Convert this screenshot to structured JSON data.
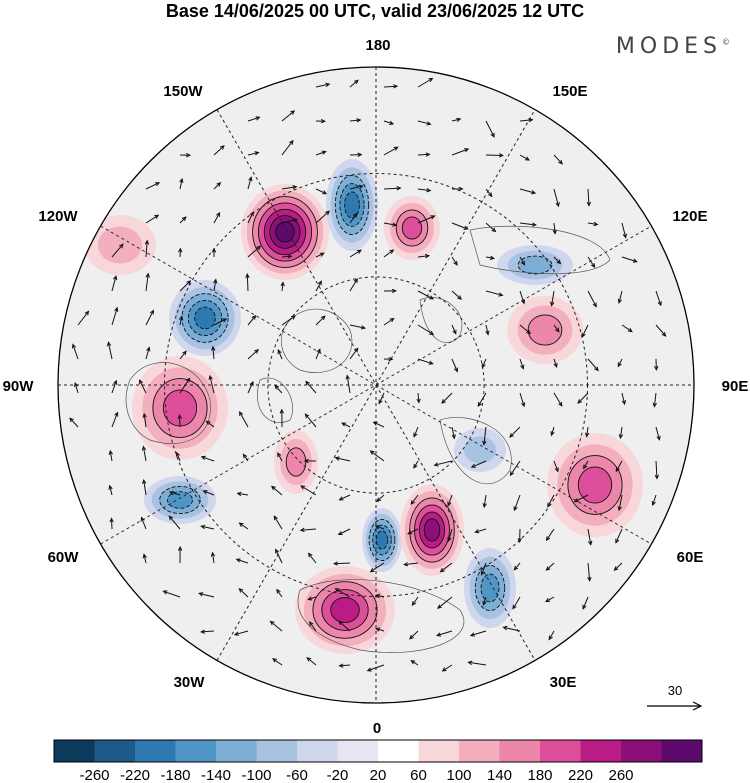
{
  "title": "Base 14/06/2025 00 UTC, valid 23/06/2025 12 UTC",
  "brand": "MODES",
  "brand_mark": "©",
  "longitude_labels": {
    "n180": "180",
    "e150": "150E",
    "e120": "120E",
    "e90": "90E",
    "e60": "60E",
    "e30": "30E",
    "s0": "0",
    "w30": "30W",
    "w60": "60W",
    "w90": "90W",
    "w120": "120W",
    "w150": "150W"
  },
  "wind_reference": "30",
  "colorbar": {
    "labels": [
      "-260",
      "-220",
      "-180",
      "-140",
      "-100",
      "-60",
      "-20",
      "20",
      "60",
      "100",
      "140",
      "180",
      "220",
      "260"
    ],
    "colors": [
      "#0e3a5c",
      "#1c5a8a",
      "#2d79b0",
      "#4f96c6",
      "#7daed6",
      "#a8c2e2",
      "#cfd6ee",
      "#e8e6f4",
      "#ffffff",
      "#f8d7da",
      "#f3afbe",
      "#ec86aa",
      "#dd4f9a",
      "#b91d85",
      "#8a0f79",
      "#5d0a6e"
    ]
  },
  "anomalies": [
    {
      "sign": "pos",
      "level": 7
    },
    {
      "sign": "neg",
      "level": 5
    },
    {
      "sign": "pos",
      "level": 4
    },
    {
      "sign": "neg",
      "level": 5
    },
    {
      "sign": "pos",
      "level": 4
    },
    {
      "sign": "neg",
      "level": 4
    },
    {
      "sign": "pos",
      "level": 3
    },
    {
      "sign": "neg",
      "level": 5
    },
    {
      "sign": "pos",
      "level": 6
    },
    {
      "sign": "neg",
      "level": 4
    },
    {
      "sign": "pos",
      "level": 5
    },
    {
      "sign": "pos",
      "level": 4
    },
    {
      "sign": "neg",
      "level": 3
    },
    {
      "sign": "pos",
      "level": 3
    },
    {
      "sign": "neg",
      "level": 2
    },
    {
      "sign": "pos",
      "level": 2
    }
  ]
}
